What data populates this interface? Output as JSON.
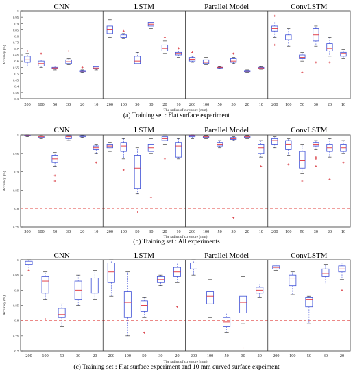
{
  "captions": [
    "(a) Training set : Flat surface experiment",
    "(b) Training set : All experiments",
    "(c) Training set : Flat surface experiment and 10 mm curved surface expeiment"
  ],
  "colors": {
    "box": "#3d4fd6",
    "median": "#e0303a",
    "outlier": "#d8363e",
    "threshold": "#e0403e",
    "frame": "#333333"
  },
  "chart_data": [
    {
      "type": "box",
      "panel_title": [
        "CNN",
        "LSTM",
        "Parallel Model",
        "ConvLSTM"
      ],
      "categories": [
        "200",
        "100",
        "50",
        "30",
        "20",
        "10"
      ],
      "xlabel": "The radius of curvature (mm)",
      "ylabel": "Accuracy (%)",
      "ylim": [
        0.3,
        1.0
      ],
      "yticks": [
        "0.3",
        "0.35",
        "0.4",
        "0.45",
        "0.5",
        "0.55",
        "0.6",
        "0.65",
        "0.7",
        "0.75",
        "0.8",
        "0.85",
        "0.9",
        "0.95",
        "1"
      ],
      "threshold": 0.8,
      "grid": false,
      "series": [
        {
          "boxes": [
            [
              0.56,
              0.59,
              0.61,
              0.64,
              0.66
            ],
            [
              0.55,
              0.56,
              0.58,
              0.6,
              0.61
            ],
            [
              0.53,
              0.54,
              0.545,
              0.55,
              0.56
            ],
            [
              0.57,
              0.58,
              0.595,
              0.61,
              0.62
            ],
            [
              0.51,
              0.515,
              0.52,
              0.525,
              0.53
            ],
            [
              0.53,
              0.54,
              0.545,
              0.555,
              0.56
            ]
          ],
          "outliers": [
            [
              0.68
            ],
            [
              0.66
            ],
            [],
            [
              0.68
            ],
            [
              0.55
            ],
            []
          ]
        },
        {
          "boxes": [
            [
              0.79,
              0.82,
              0.85,
              0.88,
              0.93
            ],
            [
              0.78,
              0.79,
              0.8,
              0.81,
              0.82
            ],
            [
              0.58,
              0.58,
              0.6,
              0.64,
              0.67
            ],
            [
              0.86,
              0.88,
              0.895,
              0.91,
              0.92
            ],
            [
              0.66,
              0.68,
              0.7,
              0.73,
              0.76
            ],
            [
              0.63,
              0.65,
              0.66,
              0.67,
              0.68
            ]
          ],
          "outliers": [
            [],
            [
              0.84
            ],
            [],
            [],
            [
              0.79
            ],
            [
              0.7
            ]
          ]
        },
        {
          "boxes": [
            [
              0.59,
              0.6,
              0.615,
              0.63,
              0.64
            ],
            [
              0.57,
              0.58,
              0.59,
              0.61,
              0.63
            ],
            [
              0.54,
              0.545,
              0.55,
              0.55,
              0.555
            ],
            [
              0.58,
              0.59,
              0.6,
              0.62,
              0.63
            ],
            [
              0.51,
              0.515,
              0.52,
              0.525,
              0.53
            ],
            [
              0.535,
              0.54,
              0.545,
              0.55,
              0.555
            ]
          ],
          "outliers": [
            [
              0.67
            ],
            [],
            [],
            [
              0.66
            ],
            [],
            []
          ]
        },
        {
          "boxes": [
            [
              0.79,
              0.84,
              0.86,
              0.88,
              0.92
            ],
            [
              0.72,
              0.77,
              0.8,
              0.81,
              0.86
            ],
            [
              0.6,
              0.62,
              0.63,
              0.65,
              0.67
            ],
            [
              0.72,
              0.76,
              0.81,
              0.86,
              0.88
            ],
            [
              0.64,
              0.68,
              0.7,
              0.74,
              0.79
            ],
            [
              0.62,
              0.64,
              0.66,
              0.67,
              0.69
            ]
          ],
          "outliers": [
            [
              0.96,
              0.73
            ],
            [],
            [
              0.51
            ],
            [
              0.59
            ],
            [
              0.59
            ],
            []
          ]
        }
      ]
    },
    {
      "type": "box",
      "panel_title": [
        "CNN",
        "LSTM",
        "Parallel Model",
        "ConvLSTM"
      ],
      "categories": [
        "200",
        "100",
        "50",
        "30",
        "20",
        "10"
      ],
      "xlabel": "The radius of curvature (mm)",
      "ylabel": "Accuracy (%)",
      "ylim": [
        0.75,
        1.0
      ],
      "yticks": [
        "0.75",
        "0.8",
        "0.85",
        "0.9",
        "0.95",
        "1"
      ],
      "threshold": 0.8,
      "grid": false,
      "series": [
        {
          "boxes": [
            [
              0.995,
              0.997,
              0.998,
              0.999,
              1.0
            ],
            [
              0.99,
              0.993,
              0.995,
              0.997,
              0.998
            ],
            [
              0.915,
              0.925,
              0.935,
              0.945,
              0.952
            ],
            [
              0.985,
              0.99,
              0.995,
              0.998,
              1.0
            ],
            [
              0.993,
              0.995,
              0.997,
              0.998,
              0.999
            ],
            [
              0.95,
              0.96,
              0.965,
              0.97,
              0.975
            ]
          ],
          "outliers": [
            [],
            [],
            [
              0.89,
              0.875
            ],
            [],
            [],
            [
              0.925
            ]
          ]
        },
        {
          "boxes": [
            [
              0.955,
              0.965,
              0.97,
              0.975,
              0.98
            ],
            [
              0.935,
              0.955,
              0.97,
              0.98,
              0.99
            ],
            [
              0.84,
              0.855,
              0.91,
              0.945,
              0.965
            ],
            [
              0.95,
              0.955,
              0.965,
              0.975,
              0.99
            ],
            [
              0.975,
              0.985,
              0.99,
              0.995,
              1.0
            ],
            [
              0.935,
              0.94,
              0.97,
              0.98,
              0.99
            ]
          ],
          "outliers": [
            [],
            [
              0.905
            ],
            [
              0.79
            ],
            [
              0.83
            ],
            [
              0.935
            ],
            []
          ]
        },
        {
          "boxes": [
            [
              0.99,
              0.995,
              0.998,
              0.999,
              1.0
            ],
            [
              0.99,
              0.993,
              0.995,
              0.997,
              0.999
            ],
            [
              0.965,
              0.97,
              0.975,
              0.98,
              0.985
            ],
            [
              0.985,
              0.988,
              0.99,
              0.993,
              0.995
            ],
            [
              0.99,
              0.993,
              0.995,
              0.997,
              0.999
            ],
            [
              0.94,
              0.95,
              0.965,
              0.975,
              0.985
            ]
          ],
          "outliers": [
            [],
            [],
            [],
            [
              0.775
            ],
            [],
            [
              0.915
            ]
          ]
        },
        {
          "boxes": [
            [
              0.965,
              0.975,
              0.985,
              0.99,
              0.995
            ],
            [
              0.945,
              0.96,
              0.975,
              0.985,
              0.99
            ],
            [
              0.895,
              0.91,
              0.93,
              0.955,
              0.975
            ],
            [
              0.96,
              0.97,
              0.975,
              0.98,
              0.985
            ],
            [
              0.94,
              0.955,
              0.965,
              0.975,
              0.99
            ],
            [
              0.95,
              0.955,
              0.965,
              0.975,
              0.985
            ]
          ],
          "outliers": [
            [],
            [
              0.92
            ],
            [
              0.875
            ],
            [
              0.94,
              0.935,
              0.915
            ],
            [
              0.88
            ],
            [
              0.925
            ]
          ]
        }
      ]
    },
    {
      "type": "box",
      "panel_title": [
        "CNN",
        "LSTM",
        "Parallel Model",
        "ConvLSTM"
      ],
      "categories": [
        "200",
        "100",
        "50",
        "30",
        "20"
      ],
      "xlabel": "The radius of curvature (mm)",
      "ylabel": "Accuracy (%)",
      "ylim": [
        0.7,
        1.0
      ],
      "yticks": [
        "0.7",
        "0.75",
        "0.8",
        "0.85",
        "0.9",
        "0.95",
        "1"
      ],
      "threshold": 0.8,
      "grid": false,
      "series": [
        {
          "boxes": [
            [
              0.97,
              0.985,
              0.99,
              0.995,
              1.0
            ],
            [
              0.87,
              0.89,
              0.93,
              0.945,
              0.96
            ],
            [
              0.78,
              0.81,
              0.82,
              0.84,
              0.855
            ],
            [
              0.85,
              0.87,
              0.9,
              0.93,
              0.95
            ],
            [
              0.87,
              0.89,
              0.92,
              0.94,
              0.965
            ]
          ],
          "outliers": [
            [
              0.965
            ],
            [
              0.805
            ],
            [],
            [],
            []
          ]
        },
        {
          "boxes": [
            [
              0.88,
              0.925,
              0.96,
              0.99,
              1.0
            ],
            [
              0.75,
              0.81,
              0.86,
              0.895,
              0.96
            ],
            [
              0.81,
              0.83,
              0.85,
              0.865,
              0.875
            ],
            [
              0.915,
              0.925,
              0.935,
              0.945,
              0.95
            ],
            [
              0.925,
              0.945,
              0.96,
              0.975,
              0.99
            ]
          ],
          "outliers": [
            [],
            [],
            [
              0.76
            ],
            [],
            [
              0.845
            ]
          ]
        },
        {
          "boxes": [
            [
              0.95,
              0.97,
              0.99,
              0.99,
              1.0
            ],
            [
              0.81,
              0.855,
              0.88,
              0.895,
              0.935
            ],
            [
              0.76,
              0.78,
              0.795,
              0.81,
              0.825
            ],
            [
              0.79,
              0.825,
              0.86,
              0.88,
              0.945
            ],
            [
              0.875,
              0.89,
              0.9,
              0.91,
              0.92
            ]
          ],
          "outliers": [
            [],
            [],
            [],
            [
              0.71
            ],
            []
          ]
        },
        {
          "boxes": [
            [
              0.965,
              0.97,
              0.975,
              0.98,
              0.99
            ],
            [
              0.885,
              0.915,
              0.94,
              0.95,
              0.96
            ],
            [
              0.79,
              0.845,
              0.87,
              0.875,
              0.88
            ],
            [
              0.92,
              0.945,
              0.955,
              0.97,
              0.985
            ],
            [
              0.935,
              0.96,
              0.97,
              0.98,
              0.99
            ]
          ],
          "outliers": [
            [],
            [],
            [],
            [],
            [
              0.9
            ]
          ]
        }
      ]
    }
  ]
}
